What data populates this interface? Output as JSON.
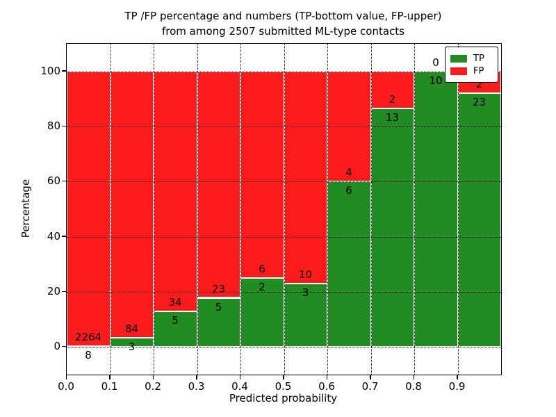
{
  "figure": {
    "title_line1": "TP /FP percentage and numbers (TP-bottom value, FP-upper)",
    "title_line2": "from among 2507 submitted ML-type contacts",
    "xlabel": "Predicted probability",
    "ylabel": "Percentage"
  },
  "legend": {
    "position": "upper right",
    "items": [
      {
        "label": "TP",
        "color": "#228b22"
      },
      {
        "label": "FP",
        "color": "#fb1b1b"
      }
    ]
  },
  "chart_data": {
    "type": "bar",
    "stacked": true,
    "normalized_to_percent": true,
    "title": "TP /FP percentage and numbers (TP-bottom value, FP-upper) from among 2507 submitted ML-type contacts",
    "xlabel": "Predicted probability",
    "ylabel": "Percentage",
    "total_contacts": 2507,
    "bin_width": 0.1,
    "bin_left_edges": [
      0.0,
      0.1,
      0.2,
      0.3,
      0.4,
      0.5,
      0.6,
      0.7,
      0.8,
      0.9
    ],
    "x_tick_labels": [
      "0.0",
      "0.1",
      "0.2",
      "0.3",
      "0.4",
      "0.5",
      "0.6",
      "0.7",
      "0.8",
      "0.9"
    ],
    "y_ticks": [
      0,
      20,
      40,
      60,
      80,
      100
    ],
    "xlim": [
      0.0,
      1.0
    ],
    "ylim": [
      -10,
      110
    ],
    "grid": true,
    "legend_position": "upper right",
    "series": [
      {
        "name": "TP",
        "color": "#228b22",
        "counts": [
          8,
          3,
          5,
          5,
          2,
          3,
          6,
          13,
          10,
          23
        ]
      },
      {
        "name": "FP",
        "color": "#fb1b1b",
        "counts": [
          2264,
          84,
          34,
          23,
          6,
          10,
          4,
          2,
          0,
          2
        ]
      }
    ]
  }
}
